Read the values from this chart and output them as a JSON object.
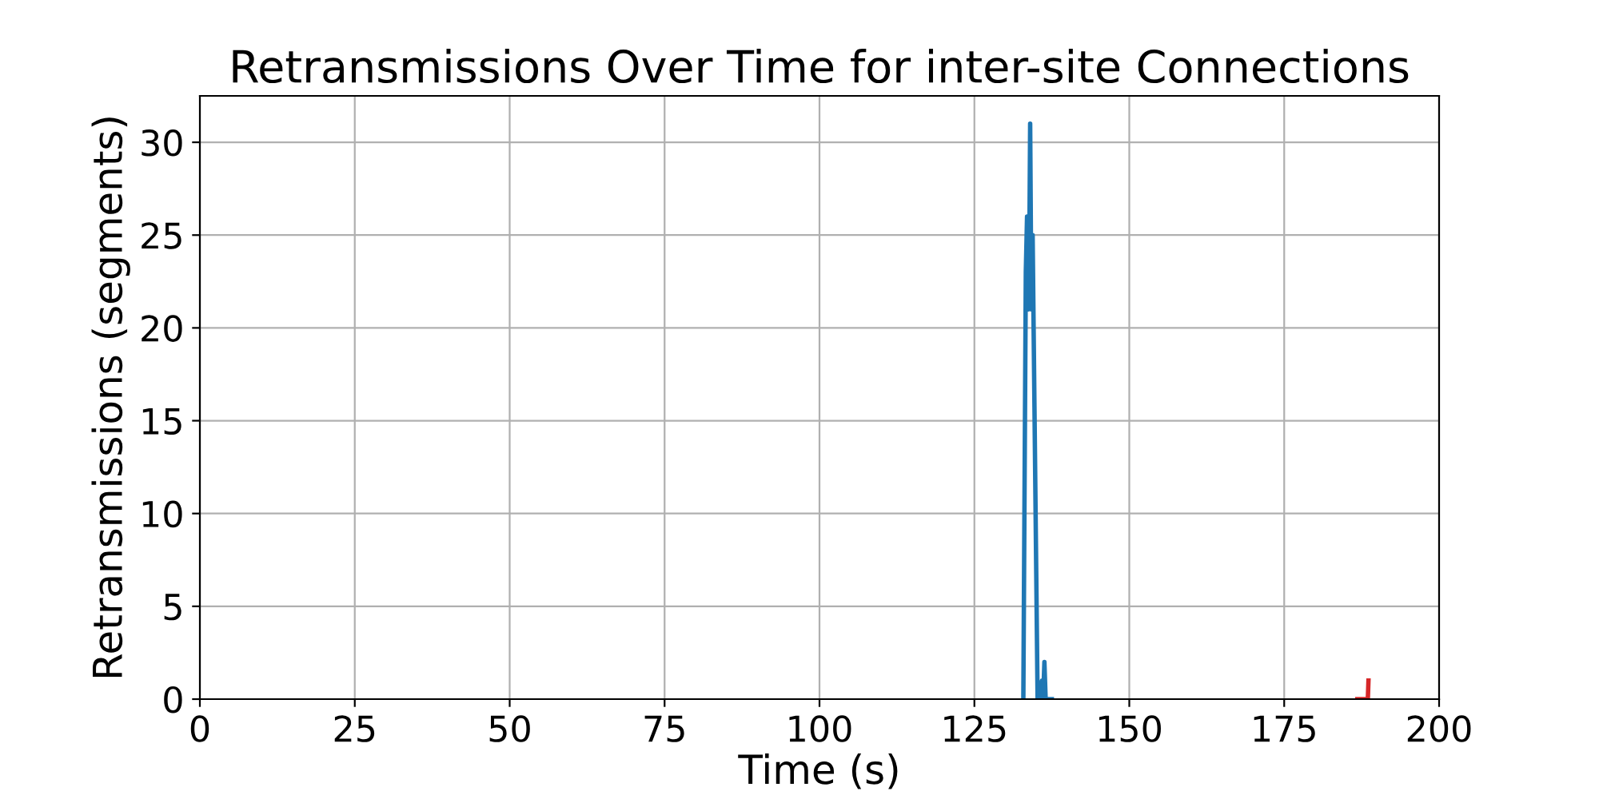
{
  "chart_data": {
    "type": "line",
    "title": "Retransmissions Over Time for inter-site Connections",
    "xlabel": "Time (s)",
    "ylabel": "Retransmissions (segments)",
    "series": [
      {
        "color": "#1f77b4",
        "x": [
          132.9,
          133.3,
          133.5,
          133.7,
          133.9,
          134.0,
          134.2,
          134.4,
          135.2,
          135.6,
          135.9,
          136.1,
          136.3,
          136.5,
          137.5
        ],
        "values": [
          0,
          23,
          26,
          21,
          26,
          31,
          21,
          25,
          0,
          0,
          1,
          0,
          2,
          0,
          0
        ]
      },
      {
        "color": "#d62728",
        "x": [
          186.8,
          188.5,
          188.6
        ],
        "values": [
          0,
          0,
          1
        ]
      }
    ],
    "xlim": [
      0,
      200
    ],
    "xticks": [
      0,
      25,
      50,
      75,
      100,
      125,
      150,
      175,
      200
    ],
    "ylim": [
      0,
      32.5
    ],
    "yticks": [
      0,
      5,
      10,
      15,
      20,
      25,
      30
    ],
    "grid": true
  }
}
